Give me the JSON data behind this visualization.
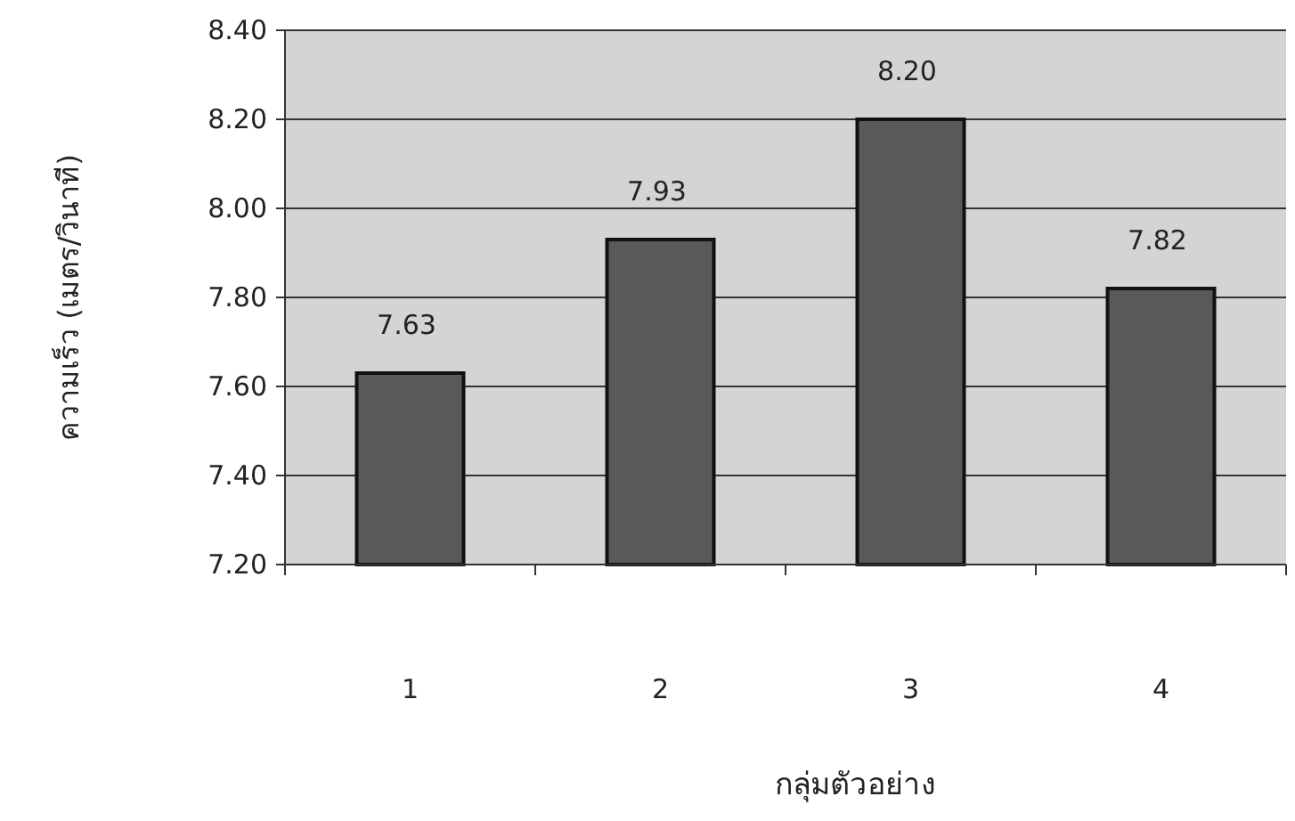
{
  "chart_data": {
    "type": "bar",
    "xlabel": "กลุ่มตัวอย่าง",
    "ylabel": "ความเร็ว (เมตร/วินาที)",
    "categories": [
      "1",
      "2",
      "3",
      "4"
    ],
    "values": [
      7.63,
      7.93,
      8.2,
      7.82
    ],
    "value_labels": [
      "7.63",
      "7.93",
      "8.20",
      "7.82"
    ],
    "color": "#595959",
    "ylim": [
      7.2,
      8.4
    ],
    "yticks": [
      {
        "value": 7.2,
        "label": "7.20"
      },
      {
        "value": 7.4,
        "label": "7.40"
      },
      {
        "value": 7.6,
        "label": "7.60"
      },
      {
        "value": 7.8,
        "label": "7.80"
      },
      {
        "value": 8.0,
        "label": "8.00"
      },
      {
        "value": 8.2,
        "label": "8.20"
      },
      {
        "value": 8.4,
        "label": "8.40"
      }
    ],
    "grid": "y"
  }
}
